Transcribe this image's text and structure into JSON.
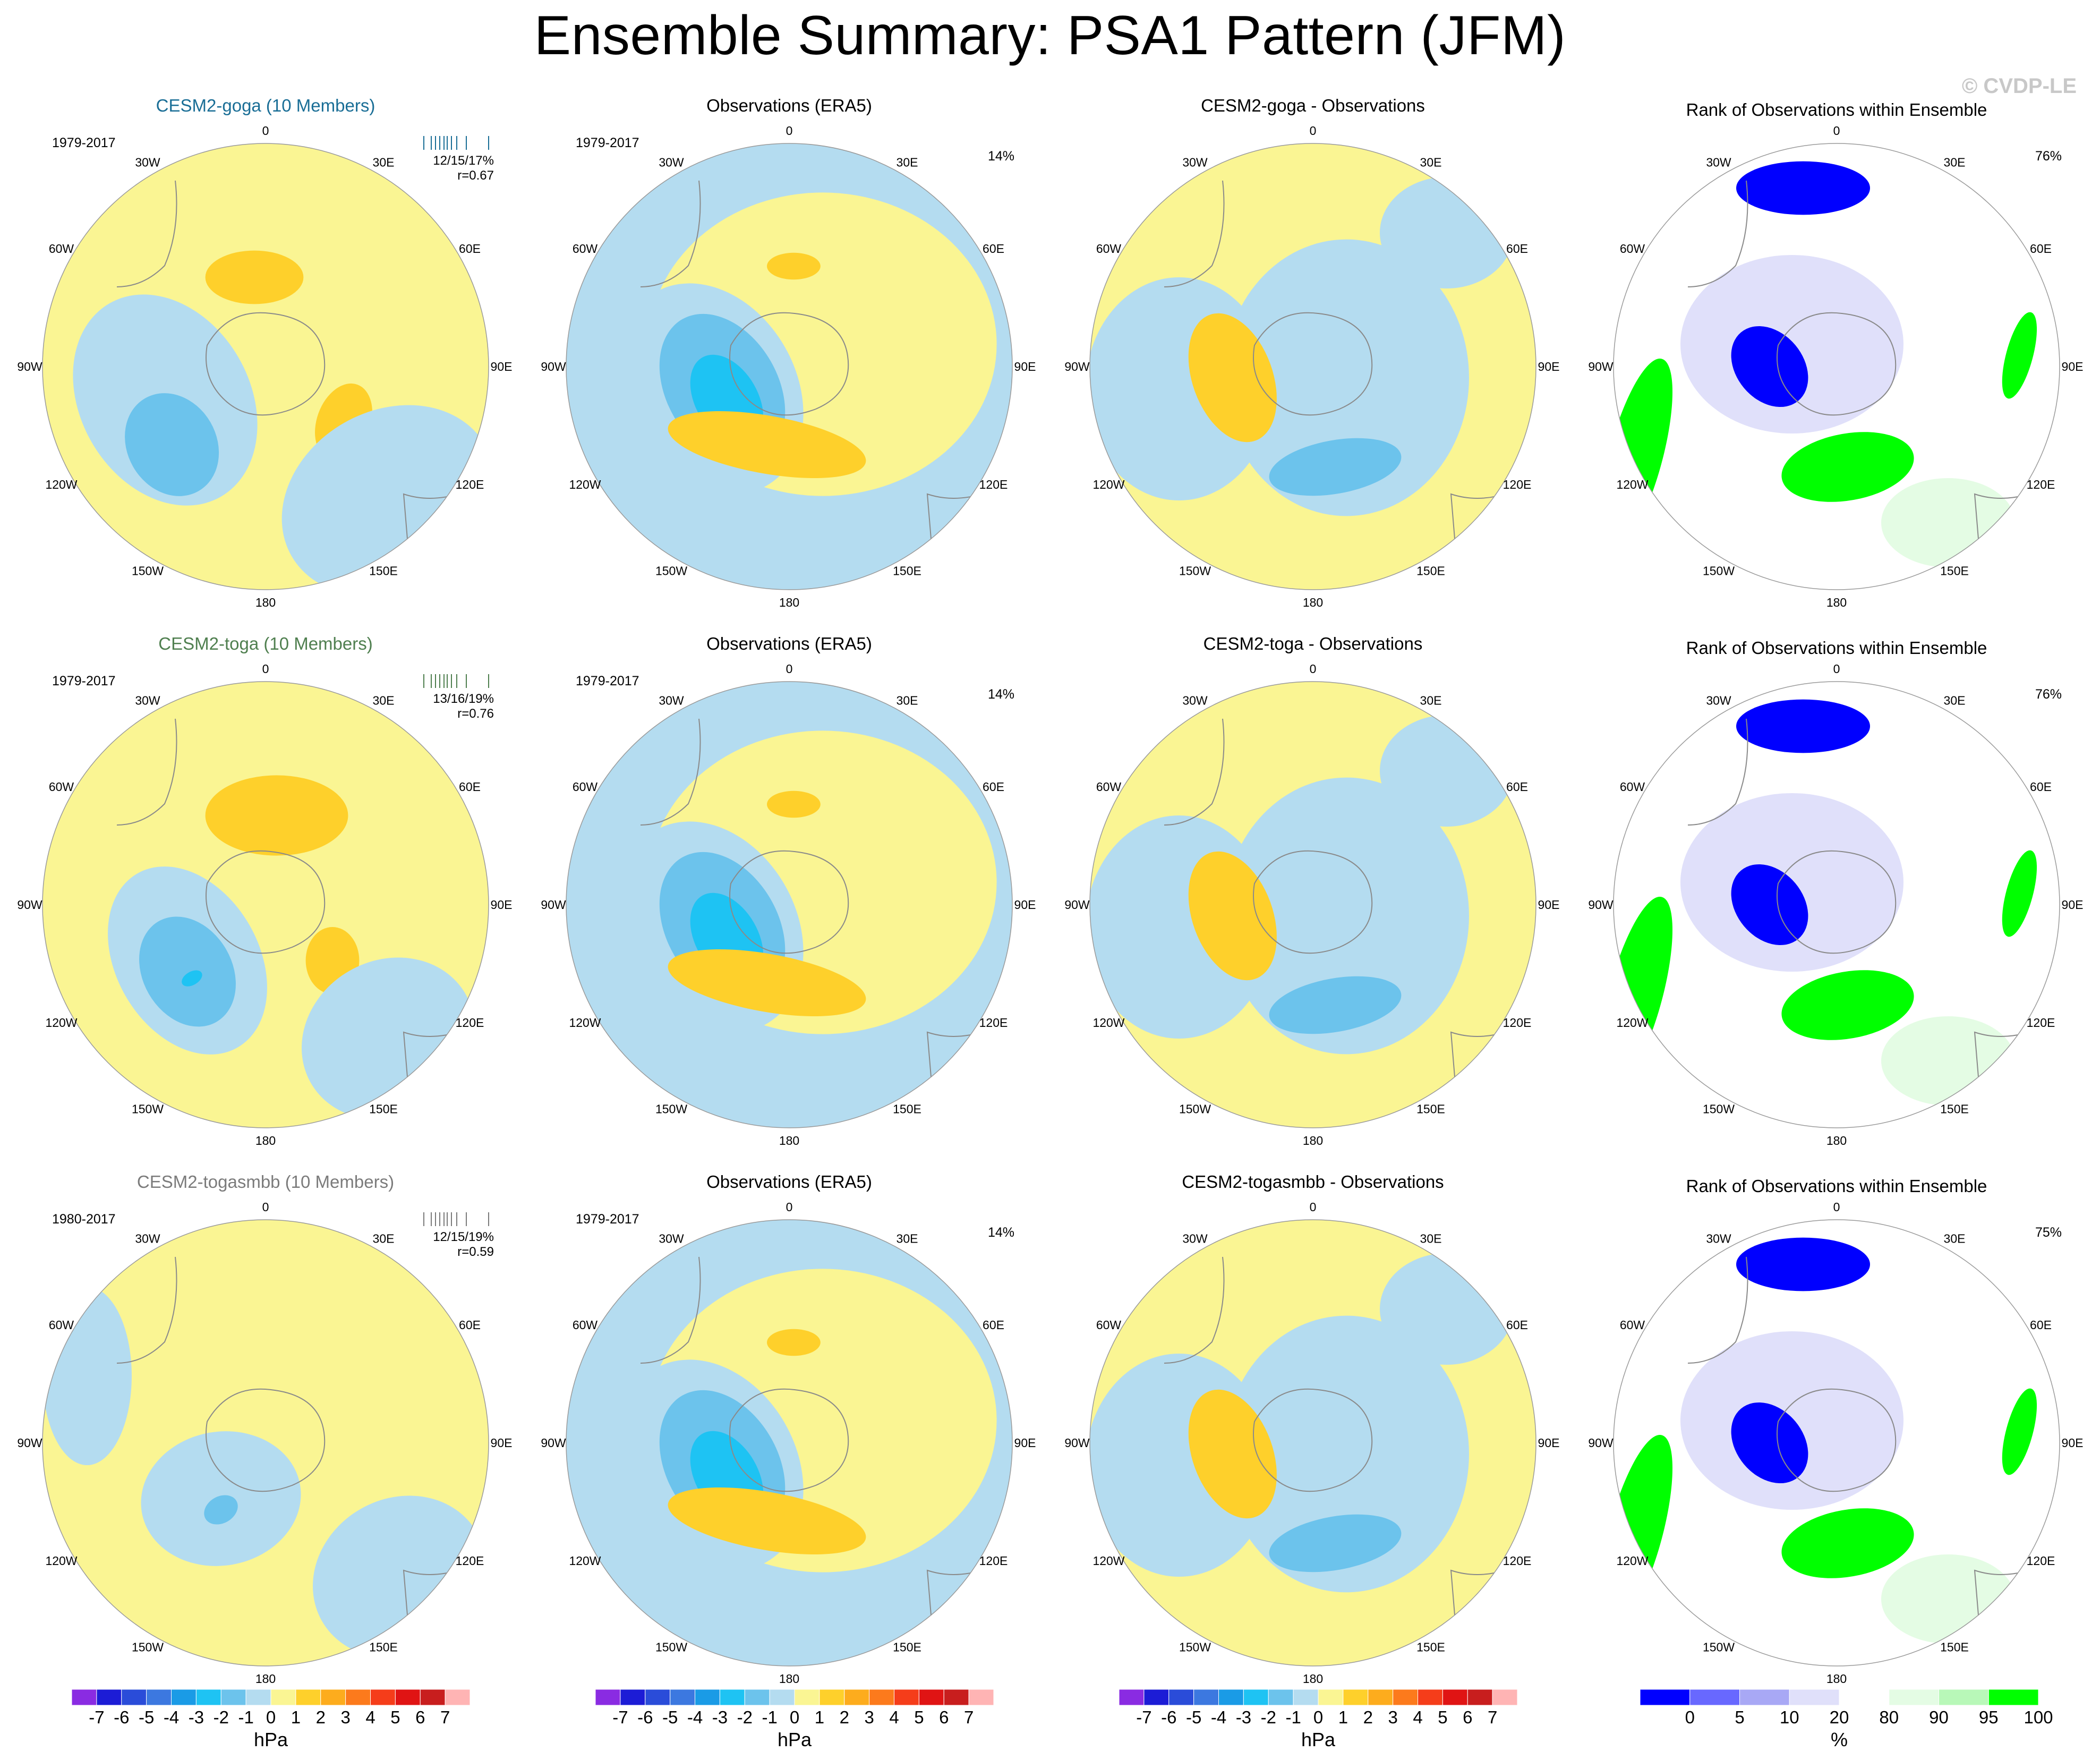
{
  "title": "Ensemble Summary: PSA1 Pattern (JFM)",
  "credit": "© CVDP-LE",
  "lon_labels": [
    "0",
    "30E",
    "60E",
    "90E",
    "120E",
    "150E",
    "180",
    "150W",
    "120W",
    "90W",
    "60W",
    "30W"
  ],
  "colors": {
    "lt1": "#b4dcf0",
    "n1": "#6cc3ec",
    "n2": "#1ec3f3",
    "n3": "#0a9be0",
    "p1": "#faf593",
    "p2": "#fed02b",
    "p3": "#fdac1d",
    "p4": "#fc7a1c",
    "rank_0": "#0000ff",
    "rank_5": "#6868ff",
    "rank_10": "#a8a8f5",
    "rank_20": "#e0e0fa",
    "rank_mid": "#ffffff",
    "rank_90": "#e4fce4",
    "rank_95": "#b8f8b8",
    "rank_100": "#00ff00"
  },
  "rows": [
    {
      "model": "CESM2-goga (10 Members)",
      "model_period": "1979-2017",
      "stats": "12/15/17%",
      "r": "r=0.67",
      "obs_title": "Observations (ERA5)",
      "obs_period": "1979-2017",
      "obs_pct": "14%",
      "diff_title": "CESM2-goga - Observations",
      "rank_title": "Rank of Observations within Ensemble",
      "rank_pct": "76%"
    },
    {
      "model": "CESM2-toga (10 Members)",
      "model_period": "1979-2017",
      "stats": "13/16/19%",
      "r": "r=0.76",
      "obs_title": "Observations (ERA5)",
      "obs_period": "1979-2017",
      "obs_pct": "14%",
      "diff_title": "CESM2-toga - Observations",
      "rank_title": "Rank of Observations within Ensemble",
      "rank_pct": "76%"
    },
    {
      "model": "CESM2-togasmbb (10 Members)",
      "model_period": "1980-2017",
      "stats": "12/15/19%",
      "r": "r=0.59",
      "obs_title": "Observations (ERA5)",
      "obs_period": "1979-2017",
      "obs_pct": "14%",
      "diff_title": "CESM2-togasmbb - Observations",
      "rank_title": "Rank of Observations within Ensemble",
      "rank_pct": "75%"
    }
  ],
  "colorbar_hpa": {
    "units": "hPa",
    "labels": [
      "-7",
      "-6",
      "-5",
      "-4",
      "-3",
      "-2",
      "-1",
      "0",
      "1",
      "2",
      "3",
      "4",
      "5",
      "6",
      "7"
    ],
    "colors": [
      "#8a2be2",
      "#1c1cd6",
      "#2a4cd9",
      "#3c78e0",
      "#1a9be6",
      "#1ec3f3",
      "#6cc3ec",
      "#b4dcf0",
      "#faf593",
      "#fed02b",
      "#fdac1d",
      "#fc7a1c",
      "#f53d1a",
      "#e01414",
      "#c81e1e",
      "#ffb4b4"
    ]
  },
  "colorbar_pct": {
    "units": "%",
    "labels": [
      "0",
      "5",
      "10",
      "20",
      "80",
      "90",
      "95",
      "100"
    ],
    "colors": [
      "#0000ff",
      "#6868ff",
      "#a8a8f5",
      "#e0e0fa",
      "#ffffff",
      "#e4fce4",
      "#b8f8b8",
      "#00ff00"
    ]
  }
}
